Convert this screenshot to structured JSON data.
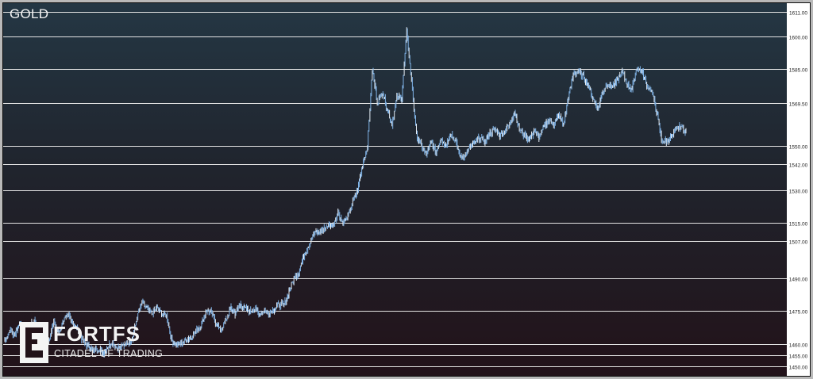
{
  "title": "GOLD",
  "logo": {
    "name": "FORTFS",
    "tagline": "CITADEL OF TRADING"
  },
  "colors": {
    "candle": "#7fb2e5",
    "candle_light": "#e6eef6",
    "level_line": "#e4e4e4",
    "axis_bg": "#ffffff",
    "axis_text": "#222222"
  },
  "chart_data": {
    "type": "line",
    "symbol": "GOLD",
    "ylim": [
      1447,
      1614
    ],
    "grid": false,
    "horizontal_levels": [
      1611.0,
      1600.0,
      1585.0,
      1569.5,
      1550.0,
      1542.0,
      1530.0,
      1515.0,
      1507.0,
      1490.0,
      1475.0,
      1460.0,
      1455.0,
      1450.0
    ],
    "y_tick_labels": [
      "1611.00",
      "1600.00",
      "1585.00",
      "1569.50",
      "1550.00",
      "1542.00",
      "1530.00",
      "1515.00",
      "1507.00",
      "1490.00",
      "1475.00",
      "1460.00",
      "1455.00",
      "1450.00"
    ],
    "series": [
      {
        "values": [
          1462,
          1466,
          1464,
          1470,
          1466,
          1467,
          1471,
          1464,
          1460,
          1462,
          1470,
          1465,
          1471,
          1473,
          1469,
          1466,
          1461,
          1459,
          1457,
          1458,
          1456,
          1459,
          1461,
          1458,
          1459,
          1461,
          1462,
          1472,
          1479,
          1476,
          1474,
          1476,
          1474,
          1473,
          1462,
          1460,
          1460,
          1462,
          1463,
          1466,
          1468,
          1475,
          1475,
          1470,
          1466,
          1470,
          1476,
          1474,
          1478,
          1476,
          1475,
          1476,
          1474,
          1475,
          1474,
          1476,
          1478,
          1478,
          1484,
          1490,
          1493,
          1500,
          1505,
          1510,
          1511,
          1512,
          1514,
          1514,
          1520,
          1515,
          1518,
          1525,
          1530,
          1542,
          1550,
          1585,
          1570,
          1575,
          1567,
          1560,
          1572,
          1572,
          1602,
          1580,
          1555,
          1550,
          1546,
          1552,
          1547,
          1554,
          1550,
          1556,
          1552,
          1545,
          1546,
          1550,
          1552,
          1554,
          1552,
          1556,
          1558,
          1555,
          1557,
          1560,
          1566,
          1558,
          1555,
          1553,
          1557,
          1554,
          1559,
          1562,
          1560,
          1564,
          1560,
          1572,
          1583,
          1584,
          1582,
          1578,
          1572,
          1567,
          1575,
          1579,
          1577,
          1580,
          1584,
          1578,
          1576,
          1586,
          1584,
          1578,
          1575,
          1566,
          1553,
          1552,
          1554,
          1558,
          1559,
          1556
        ]
      }
    ]
  }
}
